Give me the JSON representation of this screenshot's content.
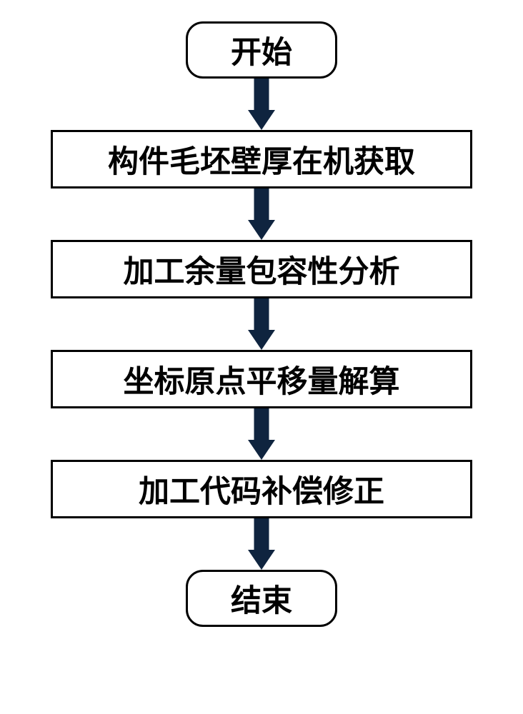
{
  "flowchart": {
    "type": "flowchart",
    "nodes": [
      {
        "id": "start",
        "kind": "terminal",
        "label": "开始"
      },
      {
        "id": "step1",
        "kind": "process",
        "label": "构件毛坯壁厚在机获取"
      },
      {
        "id": "step2",
        "kind": "process",
        "label": "加工余量包容性分析"
      },
      {
        "id": "step3",
        "kind": "process",
        "label": "坐标原点平移量解算"
      },
      {
        "id": "step4",
        "kind": "process",
        "label": "加工代码补偿修正"
      },
      {
        "id": "end",
        "kind": "terminal",
        "label": "结束"
      }
    ],
    "style": {
      "background_color": "#ffffff",
      "border_color": "#000000",
      "arrow_fill": "#0f243f",
      "terminal_width": 212,
      "terminal_height": 80,
      "terminal_radius": 24,
      "process_width": 590,
      "process_height": 82,
      "border_width": 3,
      "font_size": 43,
      "font_weight": "bold",
      "arrow_height": 72,
      "arrow_shaft_width": 21,
      "arrow_head_width": 38,
      "arrow_head_height": 28
    }
  }
}
